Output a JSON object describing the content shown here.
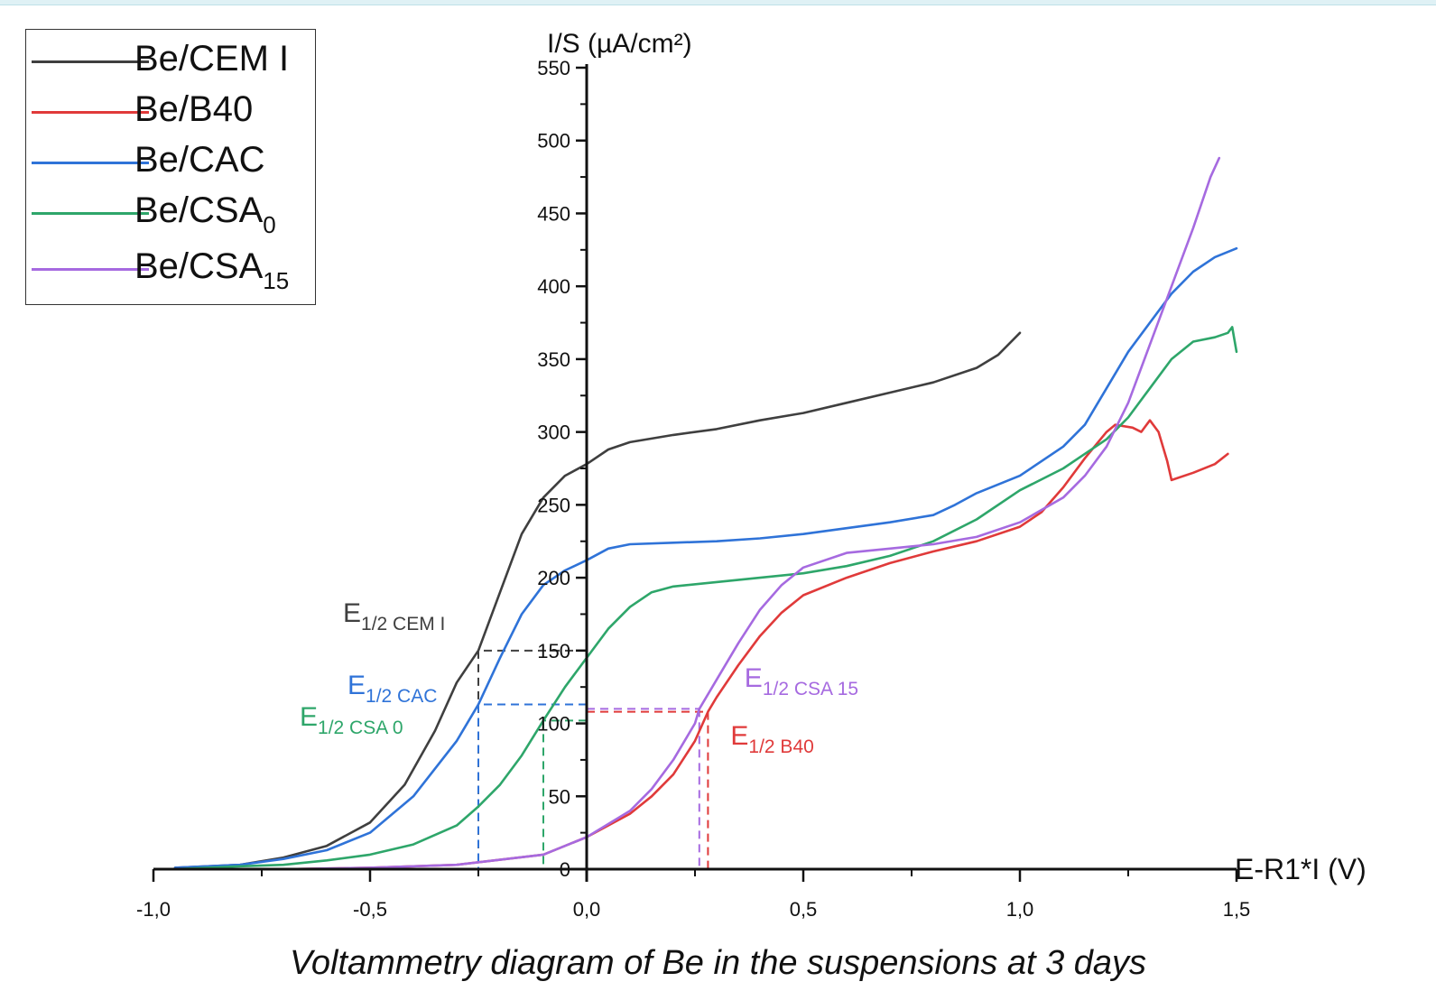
{
  "chart_data": {
    "type": "line",
    "title": "",
    "caption": "Voltammetry diagram of Be in the suspensions at 3 days",
    "xlabel": "E-R1*I (V)",
    "ylabel": "I/S (µA/cm²)",
    "xlim": [
      -1.0,
      1.5
    ],
    "ylim": [
      0,
      550
    ],
    "x_ticks": [
      "-1,0",
      "-0,5",
      "0,0",
      "0,5",
      "1,0",
      "1,5"
    ],
    "y_ticks": [
      "0",
      "50",
      "100",
      "150",
      "200",
      "250",
      "300",
      "350",
      "400",
      "450",
      "500",
      "550"
    ],
    "legend_position": "top-left",
    "grid": false,
    "series": [
      {
        "name": "Be/CEM I",
        "color": "#3f3f3f",
        "points": [
          [
            -0.95,
            1
          ],
          [
            -0.8,
            3
          ],
          [
            -0.7,
            8
          ],
          [
            -0.6,
            16
          ],
          [
            -0.5,
            32
          ],
          [
            -0.42,
            58
          ],
          [
            -0.35,
            95
          ],
          [
            -0.3,
            128
          ],
          [
            -0.25,
            150
          ],
          [
            -0.2,
            190
          ],
          [
            -0.15,
            230
          ],
          [
            -0.1,
            255
          ],
          [
            -0.05,
            270
          ],
          [
            0.0,
            278
          ],
          [
            0.05,
            288
          ],
          [
            0.1,
            293
          ],
          [
            0.2,
            298
          ],
          [
            0.3,
            302
          ],
          [
            0.4,
            308
          ],
          [
            0.5,
            313
          ],
          [
            0.6,
            320
          ],
          [
            0.7,
            327
          ],
          [
            0.8,
            334
          ],
          [
            0.9,
            344
          ],
          [
            0.95,
            353
          ],
          [
            1.0,
            368
          ]
        ]
      },
      {
        "name": "Be/B40",
        "color": "#e03a3a",
        "points": [
          [
            -0.95,
            0
          ],
          [
            -0.7,
            0
          ],
          [
            -0.5,
            1
          ],
          [
            -0.3,
            3
          ],
          [
            -0.1,
            10
          ],
          [
            0.0,
            22
          ],
          [
            0.1,
            38
          ],
          [
            0.15,
            50
          ],
          [
            0.2,
            65
          ],
          [
            0.25,
            88
          ],
          [
            0.28,
            108
          ],
          [
            0.3,
            118
          ],
          [
            0.35,
            140
          ],
          [
            0.4,
            160
          ],
          [
            0.45,
            176
          ],
          [
            0.5,
            188
          ],
          [
            0.6,
            200
          ],
          [
            0.7,
            210
          ],
          [
            0.8,
            218
          ],
          [
            0.9,
            225
          ],
          [
            1.0,
            235
          ],
          [
            1.05,
            245
          ],
          [
            1.1,
            262
          ],
          [
            1.15,
            282
          ],
          [
            1.2,
            300
          ],
          [
            1.22,
            305
          ],
          [
            1.26,
            303
          ],
          [
            1.28,
            300
          ],
          [
            1.3,
            308
          ],
          [
            1.32,
            300
          ],
          [
            1.34,
            280
          ],
          [
            1.35,
            267
          ],
          [
            1.4,
            272
          ],
          [
            1.45,
            278
          ],
          [
            1.48,
            285
          ]
        ]
      },
      {
        "name": "Be/CAC",
        "color": "#2f73d8",
        "points": [
          [
            -0.95,
            1
          ],
          [
            -0.8,
            3
          ],
          [
            -0.7,
            7
          ],
          [
            -0.6,
            13
          ],
          [
            -0.5,
            25
          ],
          [
            -0.4,
            50
          ],
          [
            -0.3,
            88
          ],
          [
            -0.25,
            113
          ],
          [
            -0.2,
            145
          ],
          [
            -0.15,
            175
          ],
          [
            -0.1,
            195
          ],
          [
            -0.05,
            205
          ],
          [
            0.0,
            212
          ],
          [
            0.05,
            220
          ],
          [
            0.1,
            223
          ],
          [
            0.2,
            224
          ],
          [
            0.3,
            225
          ],
          [
            0.4,
            227
          ],
          [
            0.5,
            230
          ],
          [
            0.6,
            234
          ],
          [
            0.7,
            238
          ],
          [
            0.8,
            243
          ],
          [
            0.85,
            250
          ],
          [
            0.9,
            258
          ],
          [
            1.0,
            270
          ],
          [
            1.1,
            290
          ],
          [
            1.15,
            305
          ],
          [
            1.2,
            330
          ],
          [
            1.25,
            355
          ],
          [
            1.3,
            375
          ],
          [
            1.35,
            395
          ],
          [
            1.4,
            410
          ],
          [
            1.45,
            420
          ],
          [
            1.5,
            426
          ]
        ]
      },
      {
        "name": "Be/CSA₀",
        "color": "#2ea66a",
        "points": [
          [
            -0.95,
            0
          ],
          [
            -0.8,
            2
          ],
          [
            -0.7,
            3
          ],
          [
            -0.6,
            6
          ],
          [
            -0.5,
            10
          ],
          [
            -0.4,
            17
          ],
          [
            -0.3,
            30
          ],
          [
            -0.25,
            43
          ],
          [
            -0.2,
            58
          ],
          [
            -0.15,
            78
          ],
          [
            -0.1,
            102
          ],
          [
            -0.05,
            125
          ],
          [
            0.0,
            145
          ],
          [
            0.05,
            165
          ],
          [
            0.1,
            180
          ],
          [
            0.15,
            190
          ],
          [
            0.2,
            194
          ],
          [
            0.3,
            197
          ],
          [
            0.4,
            200
          ],
          [
            0.5,
            203
          ],
          [
            0.6,
            208
          ],
          [
            0.7,
            215
          ],
          [
            0.8,
            225
          ],
          [
            0.9,
            240
          ],
          [
            1.0,
            260
          ],
          [
            1.1,
            275
          ],
          [
            1.2,
            295
          ],
          [
            1.25,
            310
          ],
          [
            1.3,
            330
          ],
          [
            1.35,
            350
          ],
          [
            1.4,
            362
          ],
          [
            1.45,
            365
          ],
          [
            1.48,
            368
          ],
          [
            1.49,
            372
          ],
          [
            1.5,
            355
          ]
        ]
      },
      {
        "name": "Be/CSA₁₅",
        "color": "#a66ae0",
        "points": [
          [
            -0.95,
            0
          ],
          [
            -0.7,
            0
          ],
          [
            -0.5,
            1
          ],
          [
            -0.3,
            3
          ],
          [
            -0.1,
            10
          ],
          [
            0.0,
            22
          ],
          [
            0.1,
            40
          ],
          [
            0.15,
            55
          ],
          [
            0.2,
            75
          ],
          [
            0.25,
            100
          ],
          [
            0.26,
            110
          ],
          [
            0.3,
            130
          ],
          [
            0.35,
            155
          ],
          [
            0.4,
            178
          ],
          [
            0.45,
            195
          ],
          [
            0.5,
            207
          ],
          [
            0.6,
            217
          ],
          [
            0.7,
            220
          ],
          [
            0.8,
            223
          ],
          [
            0.9,
            228
          ],
          [
            1.0,
            238
          ],
          [
            1.1,
            255
          ],
          [
            1.15,
            270
          ],
          [
            1.2,
            290
          ],
          [
            1.25,
            320
          ],
          [
            1.3,
            360
          ],
          [
            1.35,
            400
          ],
          [
            1.4,
            440
          ],
          [
            1.44,
            475
          ],
          [
            1.46,
            488
          ]
        ]
      }
    ],
    "annotations": [
      {
        "base": "E",
        "sub": "1/2 CEM I",
        "color": "#3f3f3f",
        "x": -0.25,
        "y": 150
      },
      {
        "base": "E",
        "sub": "1/2 CAC",
        "color": "#2f73d8",
        "x": -0.25,
        "y": 113
      },
      {
        "base": "E",
        "sub": "1/2 CSA 0",
        "color": "#2ea66a",
        "x": -0.1,
        "y": 102
      },
      {
        "base": "E",
        "sub": "1/2 CSA 15",
        "color": "#a66ae0",
        "x": 0.26,
        "y": 110
      },
      {
        "base": "E",
        "sub": "1/2 B40",
        "color": "#e03a3a",
        "x": 0.28,
        "y": 108
      }
    ]
  },
  "legend": {
    "items": [
      {
        "label": "Be/CEM I",
        "sub": "",
        "color": "#3f3f3f"
      },
      {
        "label": "Be/B40",
        "sub": "",
        "color": "#e03a3a"
      },
      {
        "label": "Be/CAC",
        "sub": "",
        "color": "#2f73d8"
      },
      {
        "label": "Be/CSA",
        "sub": "0",
        "color": "#2ea66a"
      },
      {
        "label": "Be/CSA",
        "sub": "15",
        "color": "#a66ae0"
      }
    ]
  }
}
